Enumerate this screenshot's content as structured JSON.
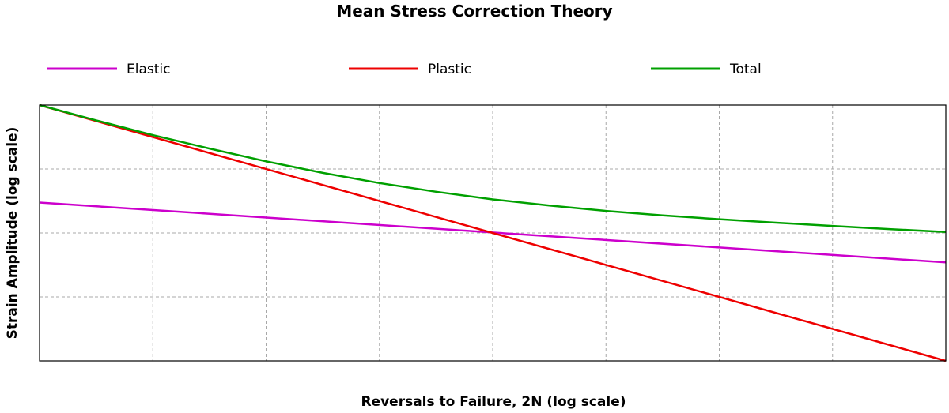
{
  "chart_data": {
    "type": "line",
    "title": "Mean Stress Correction Theory",
    "xlabel": "Reversals to Failure, 2N (log scale)",
    "ylabel": "Strain Amplitude (log scale)",
    "xlim": [
      0,
      8
    ],
    "ylim": [
      0,
      8
    ],
    "x_gridlines": 8,
    "y_gridlines": 8,
    "grid": true,
    "legend_position": "top",
    "series": [
      {
        "name": "Elastic",
        "color": "#cc00cc",
        "x": [
          0,
          8
        ],
        "y": [
          4.95,
          3.08
        ]
      },
      {
        "name": "Plastic",
        "color": "#ee0000",
        "x": [
          0,
          8
        ],
        "y": [
          8.0,
          0.0
        ]
      },
      {
        "name": "Total",
        "color": "#00a000",
        "x": [
          0,
          0.5,
          1,
          1.5,
          2,
          2.5,
          3,
          3.5,
          4,
          4.5,
          5,
          5.5,
          6,
          6.5,
          7,
          7.5,
          8
        ],
        "y": [
          8.0,
          7.52,
          7.06,
          6.64,
          6.24,
          5.88,
          5.56,
          5.29,
          5.05,
          4.86,
          4.69,
          4.55,
          4.43,
          4.32,
          4.22,
          4.12,
          4.03
        ]
      }
    ]
  }
}
